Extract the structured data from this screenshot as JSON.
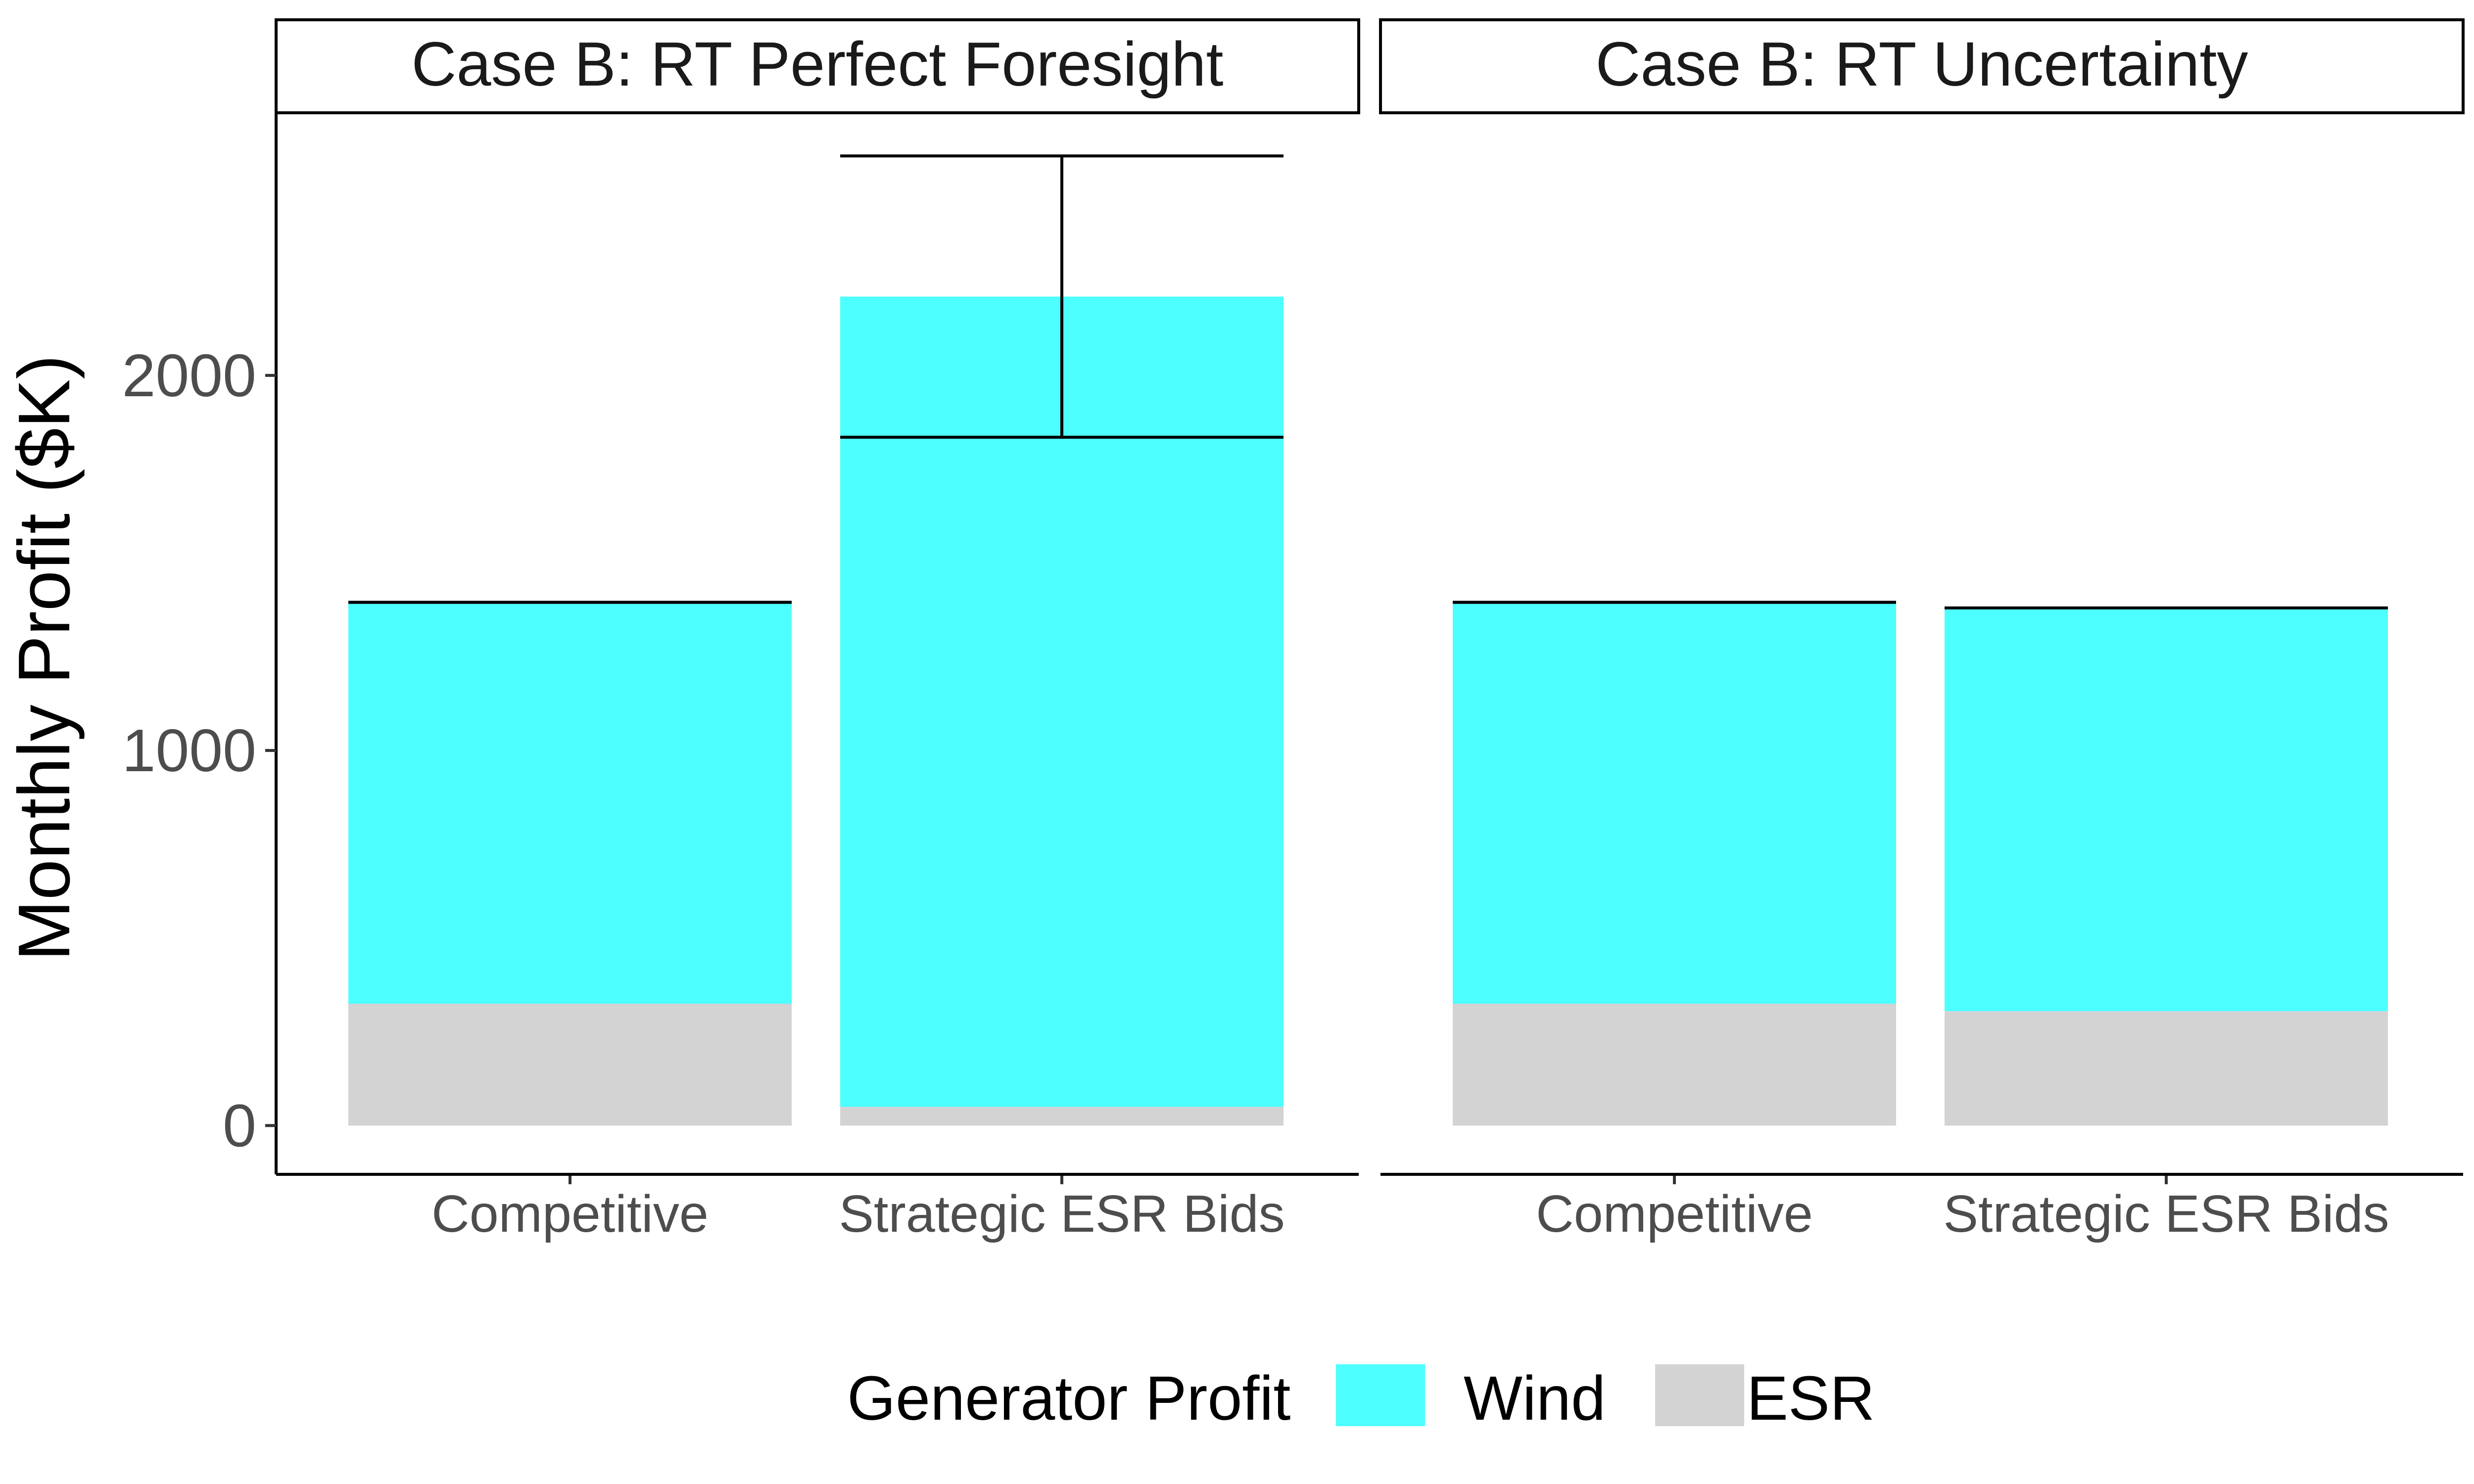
{
  "chart_data": {
    "type": "bar",
    "stacked": true,
    "ylabel": "Monthly Profit ($K)",
    "ylim": [
      -130,
      2700
    ],
    "yticks": [
      0,
      1000,
      2000
    ],
    "grid": false,
    "legend": {
      "title": "Generator Profit",
      "position": "bottom",
      "entries": [
        {
          "key": "wind",
          "label": "Wind",
          "color": "#4dffff"
        },
        {
          "key": "esr",
          "label": "ESR",
          "color": "#d3d3d3"
        }
      ]
    },
    "categories": [
      "Competitive",
      "Strategic ESR Bids"
    ],
    "panels": [
      {
        "title": "Case B: RT Perfect Foresight",
        "bars": [
          {
            "category": "Competitive",
            "esr": 325,
            "wind": 1070,
            "total": 1395,
            "error_low": 1395,
            "error_high": 1395
          },
          {
            "category": "Strategic ESR Bids",
            "esr": 50,
            "wind": 2160,
            "total": 2210,
            "error_low": 1835,
            "error_high": 2585
          }
        ]
      },
      {
        "title": "Case B: RT Uncertainty",
        "bars": [
          {
            "category": "Competitive",
            "esr": 325,
            "wind": 1070,
            "total": 1395,
            "error_low": 1395,
            "error_high": 1395
          },
          {
            "category": "Strategic ESR Bids",
            "esr": 305,
            "wind": 1075,
            "total": 1380,
            "error_low": 1380,
            "error_high": 1380
          }
        ]
      }
    ]
  }
}
